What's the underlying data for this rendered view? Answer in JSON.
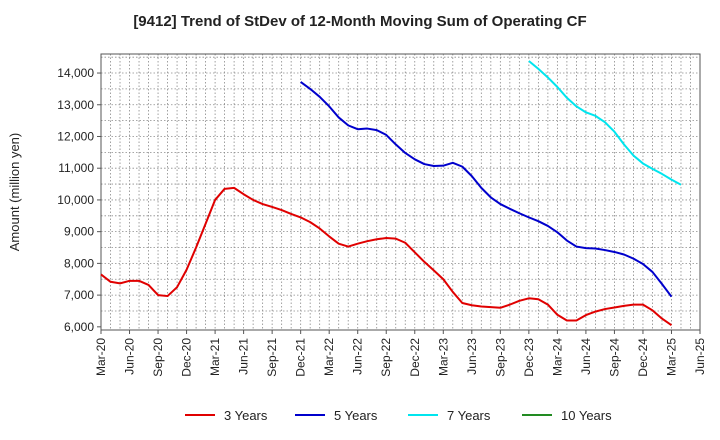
{
  "chart_data": {
    "type": "line",
    "title": "[9412]  Trend of StDev of 12-Month Moving Sum of Operating CF",
    "ylabel": "Amount (million yen)",
    "xlabel": "",
    "ylim": [
      5900,
      14600
    ],
    "yticks": [
      6000,
      7000,
      8000,
      9000,
      10000,
      11000,
      12000,
      13000,
      14000
    ],
    "ytick_labels": [
      "6,000",
      "7,000",
      "8,000",
      "9,000",
      "10,000",
      "11,000",
      "12,000",
      "13,000",
      "14,000"
    ],
    "xticks": [
      "Mar-20",
      "Jun-20",
      "Sep-20",
      "Dec-20",
      "Mar-21",
      "Jun-21",
      "Sep-21",
      "Dec-21",
      "Mar-22",
      "Jun-22",
      "Sep-22",
      "Dec-22",
      "Mar-23",
      "Jun-23",
      "Sep-23",
      "Dec-23",
      "Mar-24",
      "Jun-24",
      "Sep-24",
      "Dec-24",
      "Mar-25",
      "Jun-25"
    ],
    "grid": true,
    "legend_position": "bottom",
    "series": [
      {
        "name": "3 Years",
        "color": "#e00000",
        "start": "Mar-20",
        "values": [
          7650,
          7420,
          7370,
          7450,
          7450,
          7320,
          7000,
          6970,
          7250,
          7800,
          8500,
          9250,
          10000,
          10350,
          10380,
          10180,
          10000,
          9870,
          9780,
          9680,
          9560,
          9450,
          9300,
          9100,
          8850,
          8620,
          8530,
          8620,
          8700,
          8760,
          8800,
          8780,
          8650,
          8350,
          8050,
          7780,
          7500,
          7100,
          6750,
          6680,
          6640,
          6620,
          6600,
          6700,
          6820,
          6900,
          6870,
          6700,
          6380,
          6200,
          6200,
          6370,
          6480,
          6560,
          6610,
          6660,
          6700,
          6700,
          6520,
          6260,
          6050
        ]
      },
      {
        "name": "5 Years",
        "color": "#0000cc",
        "start": "Dec-21",
        "values": [
          13720,
          13500,
          13250,
          12950,
          12600,
          12350,
          12230,
          12250,
          12200,
          12050,
          11750,
          11480,
          11280,
          11130,
          11070,
          11080,
          11170,
          11050,
          10750,
          10380,
          10080,
          9870,
          9720,
          9580,
          9450,
          9330,
          9180,
          8980,
          8720,
          8530,
          8480,
          8470,
          8420,
          8360,
          8280,
          8150,
          7980,
          7730,
          7350,
          6950
        ]
      },
      {
        "name": "7 Years",
        "color": "#00e5ee",
        "start": "Dec-23",
        "values": [
          14380,
          14130,
          13860,
          13560,
          13220,
          12950,
          12760,
          12650,
          12450,
          12150,
          11750,
          11400,
          11150,
          10980,
          10820,
          10640,
          10480
        ]
      },
      {
        "name": "10 Years",
        "color": "#228b22",
        "start": "",
        "values": []
      }
    ]
  }
}
